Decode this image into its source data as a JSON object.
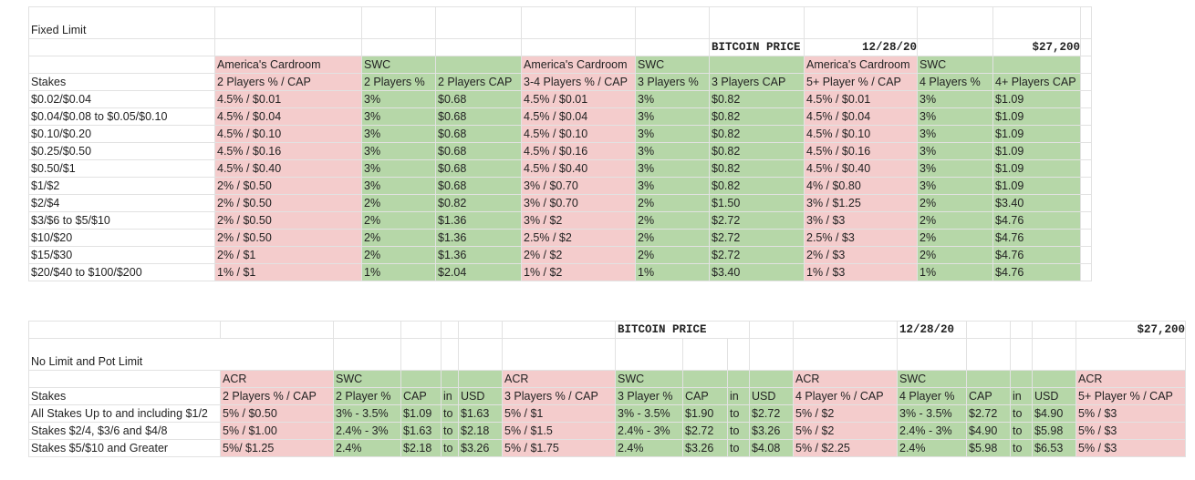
{
  "fixed_limit": {
    "title": "Fixed Limit",
    "bitcoin_label": "BITCOIN PRICE",
    "date": "12/28/20",
    "price": "$27,200",
    "groups": [
      "America's Cardroom",
      "SWC",
      "America's Cardroom",
      "SWC",
      "America's Cardroom",
      "SWC"
    ],
    "headers": [
      "Stakes",
      "2 Players % / CAP",
      "2 Players %",
      "2 Players CAP",
      "3-4 Players % / CAP",
      "3 Players %",
      "3 Players CAP",
      "5+ Player % / CAP",
      "4 Players %",
      "4+ Players CAP"
    ],
    "rows": [
      [
        "$0.02/$0.04",
        "4.5% / $0.01",
        "3%",
        "$0.68",
        "4.5% / $0.01",
        "3%",
        "$0.82",
        "4.5% / $0.01",
        "3%",
        "$1.09"
      ],
      [
        "$0.04/$0.08 to $0.05/$0.10",
        "4.5% / $0.04",
        "3%",
        "$0.68",
        "4.5% / $0.04",
        "3%",
        "$0.82",
        "4.5% / $0.04",
        "3%",
        "$1.09"
      ],
      [
        "$0.10/$0.20",
        "4.5% / $0.10",
        "3%",
        "$0.68",
        "4.5% / $0.10",
        "3%",
        "$0.82",
        "4.5% / $0.10",
        "3%",
        "$1.09"
      ],
      [
        "$0.25/$0.50",
        "4.5% / $0.16",
        "3%",
        "$0.68",
        "4.5% / $0.16",
        "3%",
        "$0.82",
        "4.5% / $0.16",
        "3%",
        "$1.09"
      ],
      [
        "$0.50/$1",
        "4.5% / $0.40",
        "3%",
        "$0.68",
        "4.5% / $0.40",
        "3%",
        "$0.82",
        "4.5% / $0.40",
        "3%",
        "$1.09"
      ],
      [
        "$1/$2",
        "2% / $0.50",
        "3%",
        "$0.68",
        "3% / $0.70",
        "3%",
        "$0.82",
        "4% / $0.80",
        "3%",
        "$1.09"
      ],
      [
        "$2/$4",
        "2% / $0.50",
        "2%",
        "$0.82",
        "3% / $0.70",
        "2%",
        "$1.50",
        "3% / $1.25",
        "2%",
        "$3.40"
      ],
      [
        "$3/$6 to $5/$10",
        "2% / $0.50",
        "2%",
        "$1.36",
        "3% / $2",
        "2%",
        "$2.72",
        "3% / $3",
        "2%",
        "$4.76"
      ],
      [
        "$10/$20",
        "2% / $0.50",
        "2%",
        "$1.36",
        "2.5% / $2",
        "2%",
        "$2.72",
        "2.5% / $3",
        "2%",
        "$4.76"
      ],
      [
        "$15/$30",
        "2% / $1",
        "2%",
        "$1.36",
        "2% / $2",
        "2%",
        "$2.72",
        "2% / $3",
        "2%",
        "$4.76"
      ],
      [
        "$20/$40 to $100/$200",
        "1% / $1",
        "1%",
        "$2.04",
        "1% / $2",
        "1%",
        "$3.40",
        "1% / $3",
        "1%",
        "$4.76"
      ]
    ]
  },
  "no_limit": {
    "title": "No Limit and Pot Limit",
    "bitcoin_label": "BITCOIN PRICE",
    "date": "12/28/20",
    "price": "$27,200",
    "groups": [
      "ACR",
      "SWC",
      "ACR",
      "SWC",
      "ACR",
      "SWC",
      "ACR"
    ],
    "headers": [
      "Stakes",
      "2 Players % / CAP",
      "2 Player %",
      "CAP",
      "in",
      "USD",
      "3 Players % / CAP",
      "3 Player %",
      "CAP",
      "in",
      "USD",
      "4 Player % / CAP",
      "4 Player %",
      "CAP",
      "in",
      "USD",
      "5+ Player % / CAP"
    ],
    "rows": [
      [
        "All Stakes Up to and including $1/2",
        "5% / $0.50",
        "3% - 3.5%",
        "$1.09",
        "to",
        "$1.63",
        "5% / $1",
        "3% - 3.5%",
        "$1.90",
        "to",
        "$2.72",
        "5% / $2",
        "3% - 3.5%",
        "$2.72",
        "to",
        "$4.90",
        "5% / $3"
      ],
      [
        "Stakes $2/4, $3/6 and $4/8",
        "5% / $1.00",
        "2.4% - 3%",
        "$1.63",
        "to",
        "$2.18",
        "5% / $1.5",
        "2.4% - 3%",
        "$2.72",
        "to",
        "$3.26",
        "5% / $2",
        "2.4% - 3%",
        "$4.90",
        "to",
        "$5.98",
        "5% / $3"
      ],
      [
        "Stakes $5/$10 and Greater",
        "5%/ $1.25",
        "2.4%",
        "$2.18",
        "to",
        "$3.26",
        "5% / $1.75",
        "2.4%",
        "$3.26",
        "to",
        "$4.08",
        "5% / $2.25",
        "2.4%",
        "$5.98",
        "to",
        "$6.53",
        "5% / $3"
      ]
    ]
  }
}
